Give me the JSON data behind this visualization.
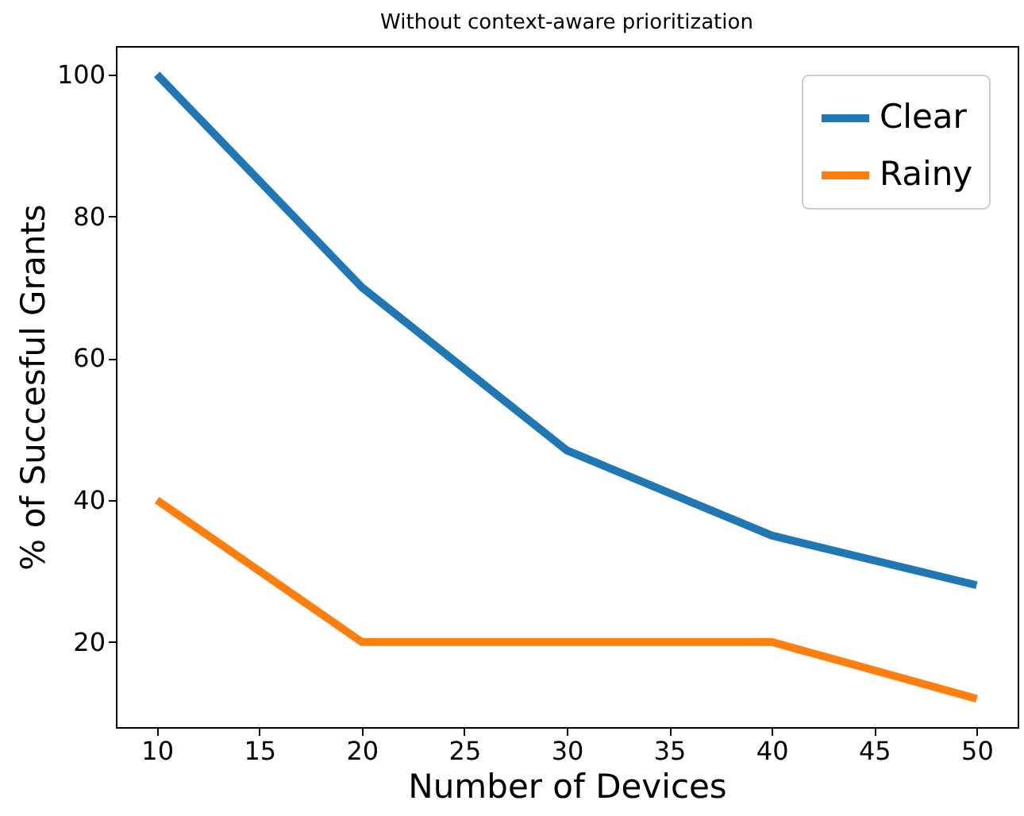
{
  "chart_data": {
    "type": "line",
    "title": "Without context-aware prioritization",
    "xlabel": "Number of Devices",
    "ylabel": "% of Succesful Grants",
    "x": [
      10,
      20,
      30,
      40,
      50
    ],
    "series": [
      {
        "name": "Clear",
        "color": "#1f77b4",
        "values": [
          100,
          70,
          47,
          35,
          28
        ]
      },
      {
        "name": "Rainy",
        "color": "#ff7f0e",
        "values": [
          40,
          20,
          20,
          20,
          12
        ]
      }
    ],
    "xlim": [
      8,
      52
    ],
    "ylim": [
      8,
      104
    ],
    "xticks": [
      10,
      15,
      20,
      25,
      30,
      35,
      40,
      45,
      50
    ],
    "yticks": [
      20,
      40,
      60,
      80,
      100
    ],
    "grid": false,
    "legend": "top right",
    "marker": "none",
    "line_style": "solid"
  }
}
